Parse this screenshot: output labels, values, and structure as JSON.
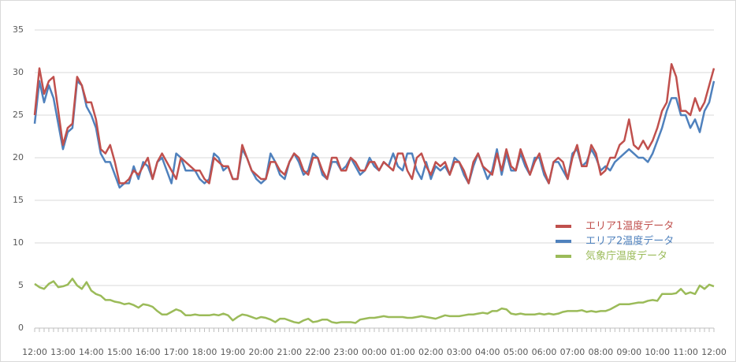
{
  "chart_data": {
    "type": "line",
    "categories": [
      "12:00",
      null,
      null,
      null,
      null,
      null,
      "13:00",
      null,
      null,
      null,
      null,
      null,
      "14:00",
      null,
      null,
      null,
      null,
      null,
      "15:00",
      null,
      null,
      null,
      null,
      null,
      "16:00",
      null,
      null,
      null,
      null,
      null,
      "17:00",
      null,
      null,
      null,
      null,
      null,
      "18:00",
      null,
      null,
      null,
      null,
      null,
      "19:00",
      null,
      null,
      null,
      null,
      null,
      "20:00",
      null,
      null,
      null,
      null,
      null,
      "21:00",
      null,
      null,
      null,
      null,
      null,
      "22:00",
      null,
      null,
      null,
      null,
      null,
      "23:00",
      null,
      null,
      null,
      null,
      null,
      "00:00",
      null,
      null,
      null,
      null,
      null,
      "01:00",
      null,
      null,
      null,
      null,
      null,
      "02:00",
      null,
      null,
      null,
      null,
      null,
      "03:00",
      null,
      null,
      null,
      null,
      null,
      "04:00",
      null,
      null,
      null,
      null,
      null,
      "05:00",
      null,
      null,
      null,
      null,
      null,
      "06:00",
      null,
      null,
      null,
      null,
      null,
      "07:00",
      null,
      null,
      null,
      null,
      null,
      "08:00",
      null,
      null,
      null,
      null,
      null,
      "09:00",
      null,
      null,
      null,
      null,
      null,
      "10:00",
      null,
      null,
      null,
      null,
      null,
      "11:00",
      null,
      null,
      null,
      null,
      null,
      "12:00"
    ],
    "series": [
      {
        "name": "エリア1温度データ",
        "color": "#c0504d",
        "values": [
          25,
          30.5,
          27.5,
          29,
          29.5,
          25.5,
          21.5,
          23.5,
          24,
          29.5,
          28.5,
          26.5,
          26.5,
          24.5,
          21,
          20.5,
          21.5,
          19.5,
          17,
          17,
          17.5,
          18.5,
          18,
          19,
          20,
          17.5,
          19.5,
          20.5,
          19.5,
          18.5,
          17.5,
          20,
          19.5,
          19,
          18.5,
          18.5,
          17.5,
          17,
          20,
          19.5,
          19,
          19,
          17.5,
          17.5,
          21.5,
          20,
          18.5,
          18,
          17.5,
          17.5,
          19.5,
          19.5,
          18.5,
          18,
          19.5,
          20.5,
          20,
          18.5,
          18,
          20,
          20,
          18.5,
          17.5,
          20,
          20,
          18.5,
          18.5,
          20,
          19.5,
          18.5,
          18.5,
          19.5,
          19.5,
          18.5,
          19.5,
          19,
          18.5,
          20.5,
          20.5,
          18.5,
          17.5,
          20,
          20.5,
          19,
          18,
          19.5,
          19,
          19.5,
          18,
          19.5,
          19.5,
          18.5,
          17,
          19.5,
          20.5,
          19,
          18.5,
          18,
          20.5,
          18.5,
          21,
          19,
          18.5,
          21,
          19.5,
          18,
          19.5,
          20.5,
          18.5,
          17,
          19.5,
          20,
          19.5,
          17.5,
          20,
          21.5,
          19,
          19,
          21.5,
          20.5,
          18,
          18.5,
          20,
          20,
          21.5,
          22,
          24.5,
          21.5,
          21,
          22,
          21,
          22,
          23.5,
          25.5,
          26.5,
          31,
          29.5,
          25.5,
          25.5,
          25,
          27,
          25.5,
          26.5,
          28.5,
          30.5
        ]
      },
      {
        "name": "エリア2温度データ",
        "color": "#4f81bd",
        "values": [
          24,
          29,
          26.5,
          28.5,
          27,
          24,
          21,
          23,
          23.5,
          29,
          28.5,
          26,
          25,
          23.5,
          20.5,
          19.5,
          19.5,
          18,
          16.5,
          17,
          17,
          19,
          17.5,
          19.5,
          19,
          17.5,
          19.5,
          20,
          18.5,
          17,
          20.5,
          20,
          18.5,
          18.5,
          18.5,
          17.5,
          17,
          17.5,
          20.5,
          20,
          18.5,
          19,
          17.5,
          17.5,
          21,
          20,
          18.5,
          17.5,
          17,
          17.5,
          20.5,
          19.5,
          18,
          17.5,
          19.5,
          20.5,
          19.5,
          18,
          18.5,
          20.5,
          20,
          18,
          17.5,
          19.5,
          19.5,
          18.5,
          19,
          20,
          19,
          18,
          18.5,
          20,
          19,
          18.5,
          19.5,
          19,
          20.5,
          19,
          18.5,
          20.5,
          20.5,
          18.5,
          17.5,
          19.5,
          17.5,
          19,
          18.5,
          19,
          18,
          20,
          19.5,
          18,
          17,
          19,
          20.5,
          19,
          17.5,
          18.5,
          21,
          18,
          20.5,
          18.5,
          18.5,
          20.5,
          19,
          18,
          20,
          20,
          18,
          17,
          19.5,
          19.5,
          18.5,
          17.5,
          20.5,
          21,
          19,
          19.5,
          21,
          20,
          18.5,
          19,
          18.5,
          19.5,
          20,
          20.5,
          21,
          20.5,
          20,
          20,
          19.5,
          20.5,
          22,
          23.5,
          25.5,
          27,
          27,
          25,
          25,
          23.5,
          24.5,
          23,
          25.5,
          26.5,
          29
        ]
      },
      {
        "name": "気象庁温度データ",
        "color": "#9bbb59",
        "values": [
          5.2,
          4.8,
          4.6,
          5.2,
          5.5,
          4.8,
          4.9,
          5.1,
          5.8,
          5,
          4.6,
          5.4,
          4.4,
          4,
          3.8,
          3.3,
          3.3,
          3.1,
          3,
          2.8,
          2.9,
          2.7,
          2.4,
          2.8,
          2.7,
          2.5,
          2,
          1.6,
          1.6,
          1.9,
          2.2,
          2,
          1.5,
          1.5,
          1.6,
          1.5,
          1.5,
          1.5,
          1.6,
          1.5,
          1.7,
          1.5,
          0.9,
          1.3,
          1.6,
          1.5,
          1.3,
          1.1,
          1.3,
          1.2,
          1,
          0.7,
          1.1,
          1.1,
          0.9,
          0.7,
          0.6,
          0.9,
          1.1,
          0.7,
          0.8,
          1,
          1,
          0.7,
          0.6,
          0.7,
          0.7,
          0.7,
          0.6,
          1,
          1.1,
          1.2,
          1.2,
          1.3,
          1.4,
          1.3,
          1.3,
          1.3,
          1.3,
          1.2,
          1.2,
          1.3,
          1.4,
          1.3,
          1.2,
          1.1,
          1.3,
          1.5,
          1.4,
          1.4,
          1.4,
          1.5,
          1.6,
          1.6,
          1.7,
          1.8,
          1.7,
          2,
          2,
          2.3,
          2.2,
          1.7,
          1.6,
          1.7,
          1.6,
          1.6,
          1.6,
          1.7,
          1.6,
          1.7,
          1.6,
          1.7,
          1.9,
          2,
          2,
          2,
          2.1,
          1.9,
          2,
          1.9,
          2,
          2,
          2.2,
          2.5,
          2.8,
          2.8,
          2.8,
          2.9,
          3,
          3,
          3.2,
          3.3,
          3.2,
          4,
          4,
          4,
          4.1,
          4.6,
          4,
          4.2,
          4,
          5,
          4.6,
          5.1,
          4.9
        ]
      }
    ],
    "ylim": [
      0,
      35
    ],
    "yticks": [
      0,
      5,
      10,
      15,
      20,
      25,
      30,
      35
    ],
    "grid": true,
    "legend": "right"
  }
}
